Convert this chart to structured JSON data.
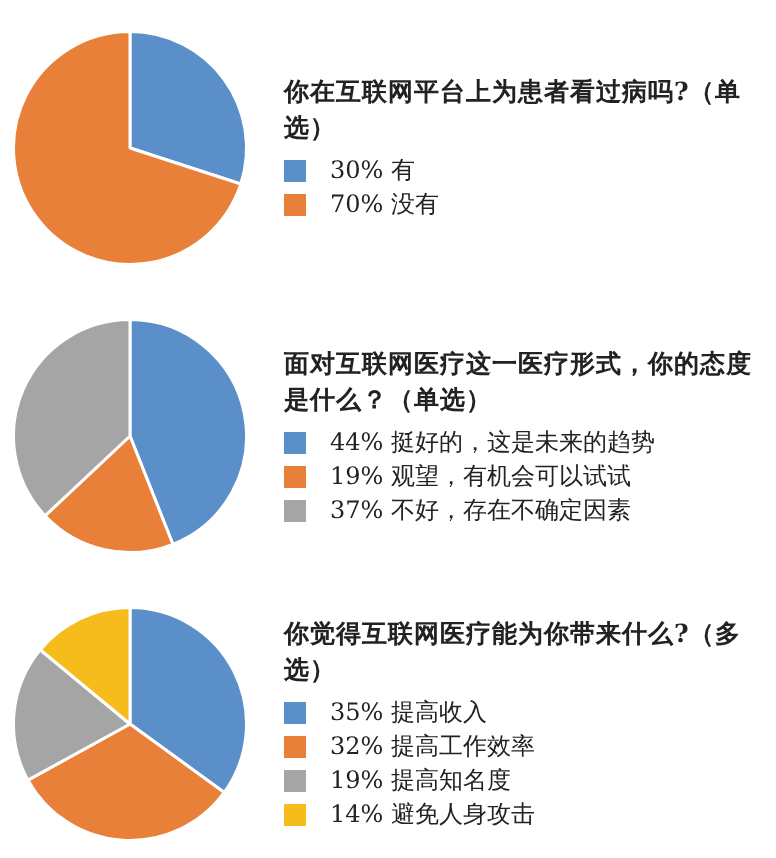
{
  "chart_data": [
    {
      "type": "pie",
      "title": "你在互联网平台上为患者看过病吗?（单选）",
      "categories": [
        "30% 有",
        "70% 没有"
      ],
      "values": [
        30,
        70
      ],
      "colors": [
        "#5b8fc9",
        "#e8803a"
      ],
      "legend": "right"
    },
    {
      "type": "pie",
      "title": "面对互联网医疗这一医疗形式，你的态度是什么？（单选）",
      "categories": [
        "44% 挺好的，这是未来的趋势",
        "19% 观望，有机会可以试试",
        "37% 不好，存在不确定因素"
      ],
      "values": [
        44,
        19,
        37
      ],
      "colors": [
        "#5b8fc9",
        "#e8803a",
        "#a5a5a5"
      ],
      "legend": "right"
    },
    {
      "type": "pie",
      "title": "你觉得互联网医疗能为你带来什么?（多选）",
      "categories": [
        "35% 提高收入",
        "32% 提高工作效率",
        "19% 提高知名度",
        "14% 避免人身攻击"
      ],
      "values": [
        35,
        32,
        19,
        14
      ],
      "colors": [
        "#5b8fc9",
        "#e8803a",
        "#a5a5a5",
        "#f5bc1c"
      ],
      "legend": "right"
    }
  ]
}
